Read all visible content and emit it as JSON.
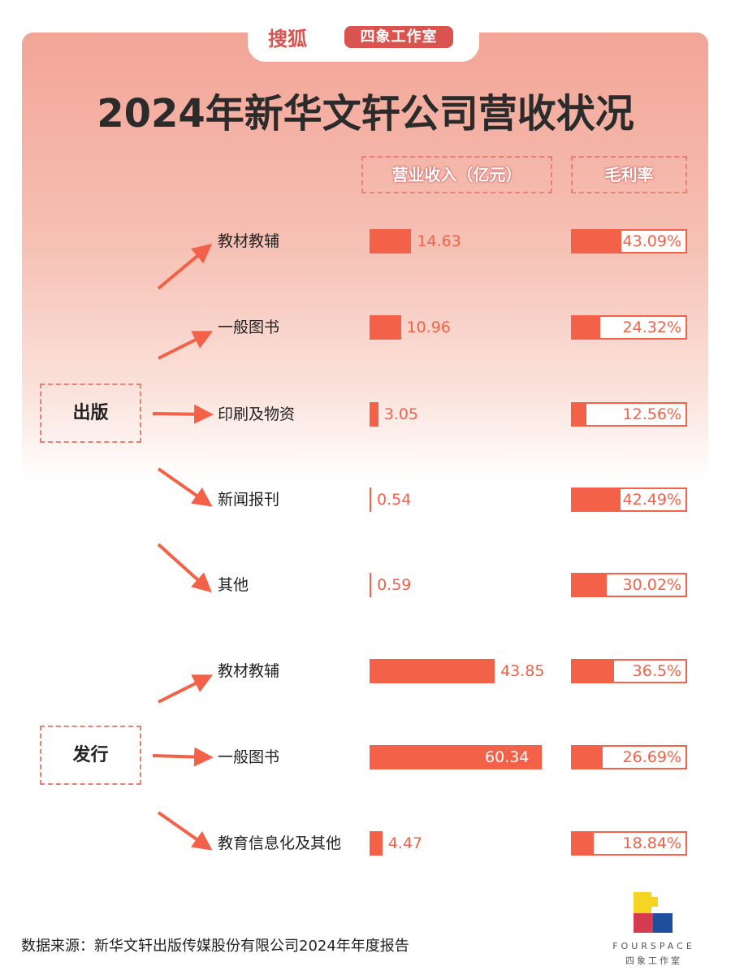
{
  "header": {
    "brand": "搜狐",
    "badge": "四象工作室"
  },
  "chart_data": {
    "type": "bar",
    "title": "2024年新华文轩公司营收状况",
    "columns": [
      "营业收入（亿元）",
      "毛利率"
    ],
    "groups": [
      {
        "name": "出版",
        "items": [
          {
            "category": "教材教辅",
            "revenue": 14.63,
            "revenue_label": "14.63",
            "margin": 43.09,
            "margin_label": "43.09%"
          },
          {
            "category": "一般图书",
            "revenue": 10.96,
            "revenue_label": "10.96",
            "margin": 24.32,
            "margin_label": "24.32%"
          },
          {
            "category": "印刷及物资",
            "revenue": 3.05,
            "revenue_label": "3.05",
            "margin": 12.56,
            "margin_label": "12.56%"
          },
          {
            "category": "新闻报刊",
            "revenue": 0.54,
            "revenue_label": "0.54",
            "margin": 42.49,
            "margin_label": "42.49%"
          },
          {
            "category": "其他",
            "revenue": 0.59,
            "revenue_label": "0.59",
            "margin": 30.02,
            "margin_label": "30.02%"
          }
        ]
      },
      {
        "name": "发行",
        "items": [
          {
            "category": "教材教辅",
            "revenue": 43.85,
            "revenue_label": "43.85",
            "margin": 36.5,
            "margin_label": "36.5%"
          },
          {
            "category": "一般图书",
            "revenue": 60.34,
            "revenue_label": "60.34",
            "margin": 26.69,
            "margin_label": "26.69%"
          },
          {
            "category": "教育信息化及其他",
            "revenue": 4.47,
            "revenue_label": "4.47",
            "margin": 18.84,
            "margin_label": "18.84%"
          }
        ]
      }
    ]
  },
  "footer": {
    "source": "数据来源：新华文轩出版传媒股份有限公司2024年年度报告",
    "logo_en": "FOURSPACE",
    "logo_cn": "四象工作室"
  },
  "colors": {
    "accent": "#f26148",
    "brand": "#d9534f"
  }
}
